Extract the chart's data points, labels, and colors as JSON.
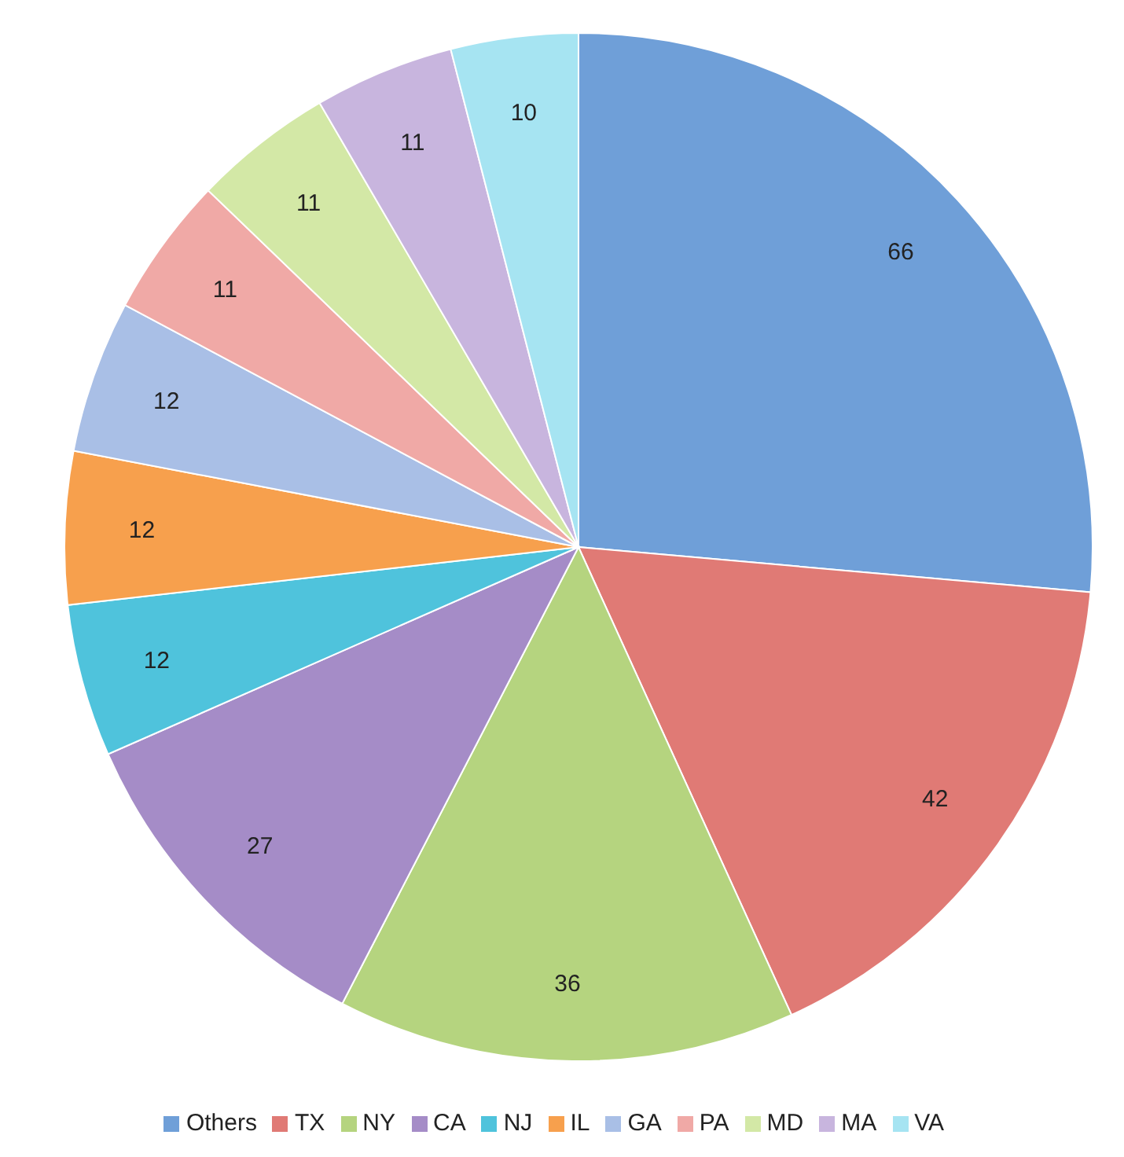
{
  "chart_data": {
    "type": "pie",
    "categories": [
      "Others",
      "TX",
      "NY",
      "CA",
      "NJ",
      "IL",
      "GA",
      "PA",
      "MD",
      "MA",
      "VA"
    ],
    "values": [
      66,
      42,
      36,
      27,
      12,
      12,
      12,
      11,
      11,
      11,
      10
    ],
    "colors": [
      "#6f9fd8",
      "#e07a75",
      "#b5d47f",
      "#a58cc7",
      "#4fc3dc",
      "#f7a04d",
      "#a9bfe6",
      "#f0a9a6",
      "#d3e8a6",
      "#c8b5de",
      "#a6e4f2"
    ],
    "data_labels": true,
    "legend": "bottom"
  }
}
